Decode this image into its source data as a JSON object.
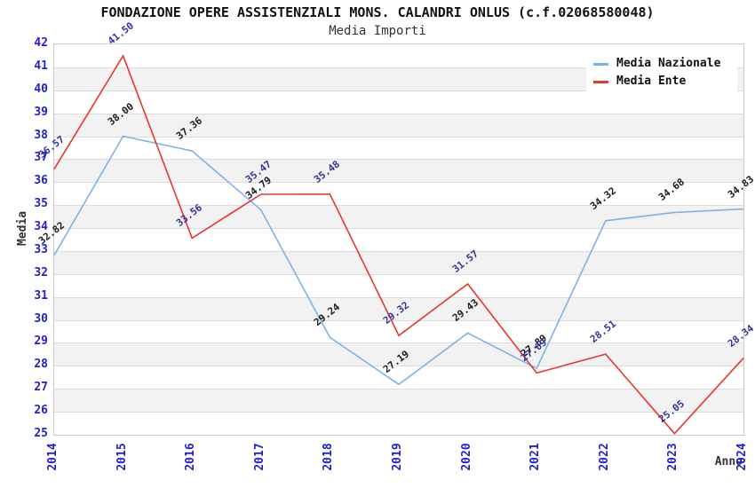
{
  "chart_data": {
    "type": "line",
    "title": "FONDAZIONE OPERE ASSISTENZIALI MONS. CALANDRI ONLUS (c.f.02068580048)",
    "subtitle": "Media Importi",
    "xlabel": "Anno",
    "ylabel": "Media",
    "x": [
      2014,
      2015,
      2016,
      2017,
      2018,
      2019,
      2020,
      2021,
      2022,
      2023,
      2024
    ],
    "series": [
      {
        "name": "Media Nazionale",
        "color": "#7db2e8",
        "label_color": "#1a1a1a",
        "values": [
          32.82,
          38.0,
          37.36,
          34.79,
          29.24,
          27.19,
          29.43,
          27.89,
          34.32,
          34.68,
          34.83
        ]
      },
      {
        "name": "Media Ente",
        "color": "#e8352e",
        "label_color": "#333399",
        "values": [
          36.57,
          41.5,
          33.56,
          35.47,
          35.48,
          29.32,
          31.57,
          27.69,
          28.51,
          25.05,
          28.34
        ]
      }
    ],
    "ylim": [
      25,
      42
    ],
    "ytick_step": 1,
    "grid": true,
    "band_color": "#f2f2f2",
    "tick_color": "#2222cc",
    "axis_label_color": "#333333",
    "legend_position": "top-right",
    "value_label_decimals": 2
  }
}
